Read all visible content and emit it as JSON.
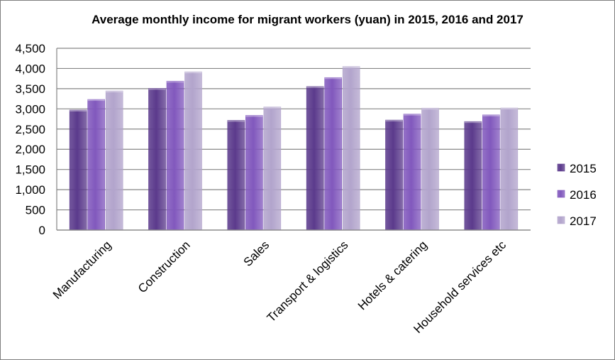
{
  "chart_data": {
    "type": "bar",
    "title": "Average monthly income for migrant workers (yuan) in 2015, 2016 and 2017",
    "xlabel": "",
    "ylabel": "",
    "ylim": [
      0,
      4500
    ],
    "yticks": [
      0,
      500,
      1000,
      1500,
      2000,
      2500,
      3000,
      3500,
      4000,
      4500
    ],
    "ytick_labels": [
      "0",
      "500",
      "1,000",
      "1,500",
      "2,000",
      "2,500",
      "3,000",
      "3,500",
      "4,000",
      "4,500"
    ],
    "grid": true,
    "legend_position": "right",
    "categories": [
      "Manufacturing",
      "Construction",
      "Sales",
      "Transport & logistics",
      "Hotels & catering",
      "Household services etc"
    ],
    "series": [
      {
        "name": "2015",
        "color": "#5b3a8c",
        "values": [
          2970,
          3508,
          2716,
          3553,
          2723,
          2686
        ]
      },
      {
        "name": "2016",
        "color": "#8158bd",
        "values": [
          3233,
          3687,
          2839,
          3775,
          2872,
          2851
        ]
      },
      {
        "name": "2017",
        "color": "#b2a4cc",
        "values": [
          3444,
          3918,
          3048,
          4048,
          3019,
          3022
        ]
      }
    ]
  }
}
